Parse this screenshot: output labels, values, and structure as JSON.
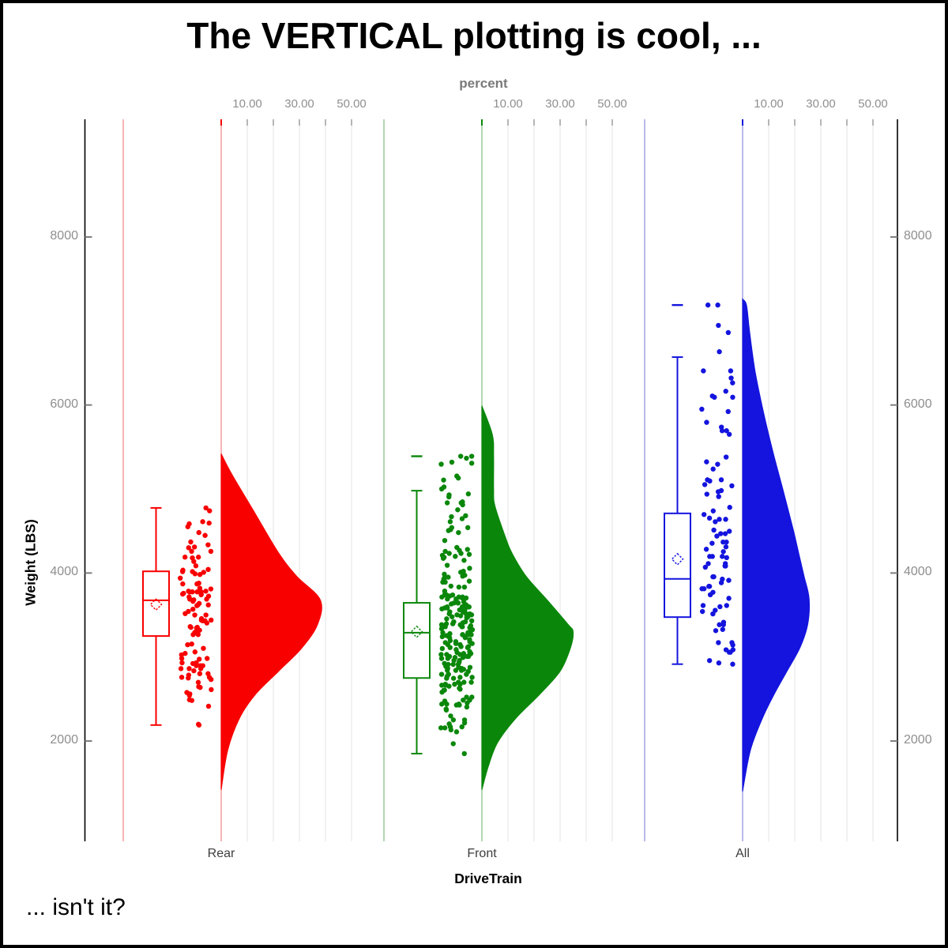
{
  "chart_data": {
    "type": "raincloud",
    "orientation": "vertical",
    "title": "The VERTICAL plotting is cool, ...",
    "footnote": "... isn't it?",
    "x_axis": {
      "label": "DriveTrain",
      "categories": [
        "Rear",
        "Front",
        "All"
      ]
    },
    "y_axis": {
      "label": "Weight (LBS)",
      "ticks": [
        2000,
        4000,
        6000,
        8000
      ],
      "range": [
        810,
        9410
      ]
    },
    "percent_axis": {
      "label": "percent",
      "tick_labels": [
        "10.00",
        "30.00",
        "50.00"
      ],
      "tick_values": [
        10,
        30,
        50
      ],
      "gridline_values": [
        10,
        20,
        30,
        40,
        50
      ]
    },
    "legend": "none",
    "grid": "vertical-percent-gridlines",
    "groups": [
      {
        "name": "Rear",
        "color": "#f80000",
        "pale_color": "#f6adad",
        "n": 110,
        "box": {
          "whisker_low": 2190,
          "q1": 3250,
          "median": 3675,
          "q3": 4020,
          "whisker_high": 4775,
          "mean": 3625
        },
        "outliers": [],
        "data_range": [
          2190,
          4775
        ],
        "violin_profile_weight_pct": [
          [
            5420,
            0
          ],
          [
            5180,
            4
          ],
          [
            4710,
            13
          ],
          [
            4240,
            22
          ],
          [
            3960,
            29
          ],
          [
            3680,
            38
          ],
          [
            3390,
            37
          ],
          [
            3110,
            31
          ],
          [
            2830,
            22
          ],
          [
            2550,
            13
          ],
          [
            2270,
            7
          ],
          [
            1890,
            2.5
          ],
          [
            1420,
            0
          ]
        ]
      },
      {
        "name": "Front",
        "color": "#0a870a",
        "pale_color": "#a9d3a9",
        "n": 226,
        "box": {
          "whisker_low": 1850,
          "q1": 2750,
          "median": 3290,
          "q3": 3645,
          "whisker_high": 4980,
          "mean": 3300
        },
        "outliers": [
          5390
        ],
        "data_range": [
          1850,
          5390
        ],
        "violin_profile_weight_pct": [
          [
            5990,
            0
          ],
          [
            5650,
            4
          ],
          [
            5390,
            4.5
          ],
          [
            5000,
            4.5
          ],
          [
            4800,
            5
          ],
          [
            4430,
            9
          ],
          [
            4240,
            11.5
          ],
          [
            3960,
            17
          ],
          [
            3680,
            25
          ],
          [
            3390,
            33
          ],
          [
            3300,
            35
          ],
          [
            3110,
            34
          ],
          [
            2830,
            30
          ],
          [
            2550,
            22
          ],
          [
            2270,
            13
          ],
          [
            1980,
            6
          ],
          [
            1700,
            2.5
          ],
          [
            1420,
            0
          ]
        ]
      },
      {
        "name": "All",
        "color": "#1414de",
        "pale_color": "#b2b2ea",
        "n": 92,
        "box": {
          "whisker_low": 2915,
          "q1": 3475,
          "median": 3930,
          "q3": 4710,
          "whisker_high": 6570,
          "mean": 4165
        },
        "outliers": [
          7190
        ],
        "data_range": [
          2915,
          7190
        ],
        "violin_profile_weight_pct": [
          [
            7260,
            0
          ],
          [
            7190,
            1.5
          ],
          [
            6870,
            2.7
          ],
          [
            6400,
            4.8
          ],
          [
            5930,
            7.9
          ],
          [
            5460,
            11.5
          ],
          [
            4990,
            15.5
          ],
          [
            4520,
            19.4
          ],
          [
            4240,
            21.5
          ],
          [
            3960,
            23.6
          ],
          [
            3700,
            25.5
          ],
          [
            3390,
            25
          ],
          [
            3110,
            22
          ],
          [
            2830,
            17
          ],
          [
            2550,
            12
          ],
          [
            2270,
            7.6
          ],
          [
            1890,
            3
          ],
          [
            1400,
            0
          ]
        ]
      }
    ]
  }
}
